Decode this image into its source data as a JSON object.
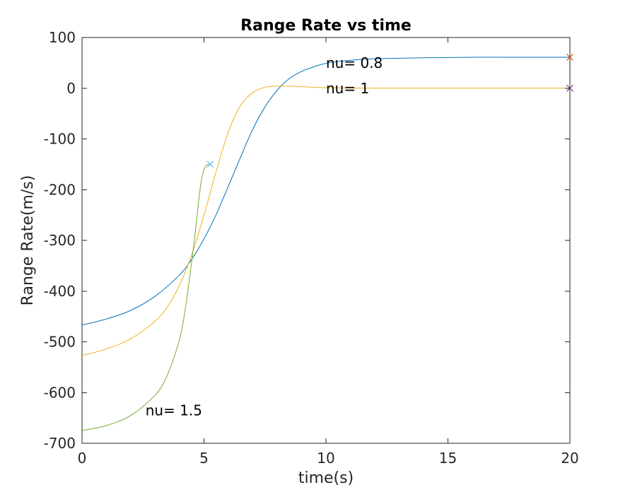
{
  "chart_data": {
    "type": "line",
    "title": "Range Rate vs time",
    "xlabel": "time(s)",
    "ylabel": "Range Rate(m/s)",
    "xlim": [
      0,
      20
    ],
    "ylim": [
      -700,
      100
    ],
    "xticks": [
      0,
      5,
      10,
      15,
      20
    ],
    "yticks": [
      100,
      0,
      -100,
      -200,
      -300,
      -400,
      -500,
      -600,
      -700
    ],
    "xtick_labels": [
      "0",
      "5",
      "10",
      "15",
      "20"
    ],
    "ytick_labels": [
      "100",
      "0",
      "-100",
      "-200",
      "-300",
      "-400",
      "-500",
      "-600",
      "-700"
    ],
    "grid": false,
    "series": [
      {
        "color": "#0072BD",
        "x": [
          0,
          1,
          2,
          3,
          4,
          4.5,
          5,
          5.5,
          6,
          6.5,
          7,
          7.5,
          8,
          8.5,
          9,
          9.5,
          10,
          11,
          12,
          14,
          16,
          18,
          20
        ],
        "y": [
          -467,
          -455,
          -438,
          -410,
          -368,
          -337,
          -297,
          -249,
          -193,
          -136,
          -81,
          -37,
          -4,
          19,
          33,
          42,
          49,
          55,
          58,
          60,
          61,
          61,
          61
        ],
        "end_marker": {
          "x": 20,
          "y": 61,
          "color": "#D95319"
        }
      },
      {
        "color": "#EDB120",
        "x": [
          0,
          1,
          2,
          3,
          3.5,
          4,
          4.5,
          5,
          5.5,
          6,
          6.5,
          7,
          7.5,
          8,
          8.5,
          9,
          10,
          12,
          14,
          16,
          18,
          20
        ],
        "y": [
          -527,
          -514,
          -494,
          -459,
          -431,
          -388,
          -328,
          -250,
          -164,
          -86,
          -34,
          -9,
          2,
          4,
          4,
          3,
          1,
          0,
          0,
          0,
          0,
          0
        ],
        "end_marker": {
          "x": 20,
          "y": 0,
          "color": "#7E2F8E"
        }
      },
      {
        "color": "#77AC30",
        "x": [
          0,
          1,
          2,
          3,
          3.5,
          4,
          4.25,
          4.5,
          4.65,
          4.8,
          4.9,
          5.0,
          5.1,
          5.2
        ],
        "y": [
          -675,
          -665,
          -645,
          -605,
          -565,
          -495,
          -430,
          -340,
          -280,
          -215,
          -180,
          -160,
          -152,
          -150
        ],
        "end_marker": {
          "x": 5.25,
          "y": -150,
          "color": "#4DBEEE"
        }
      }
    ],
    "annotations": [
      {
        "text": "nu= 0.8",
        "x": 10,
        "y": 50
      },
      {
        "text": "nu= 1",
        "x": 10,
        "y": 0
      },
      {
        "text": "nu= 1.5",
        "x": 2.6,
        "y": -635
      }
    ]
  }
}
